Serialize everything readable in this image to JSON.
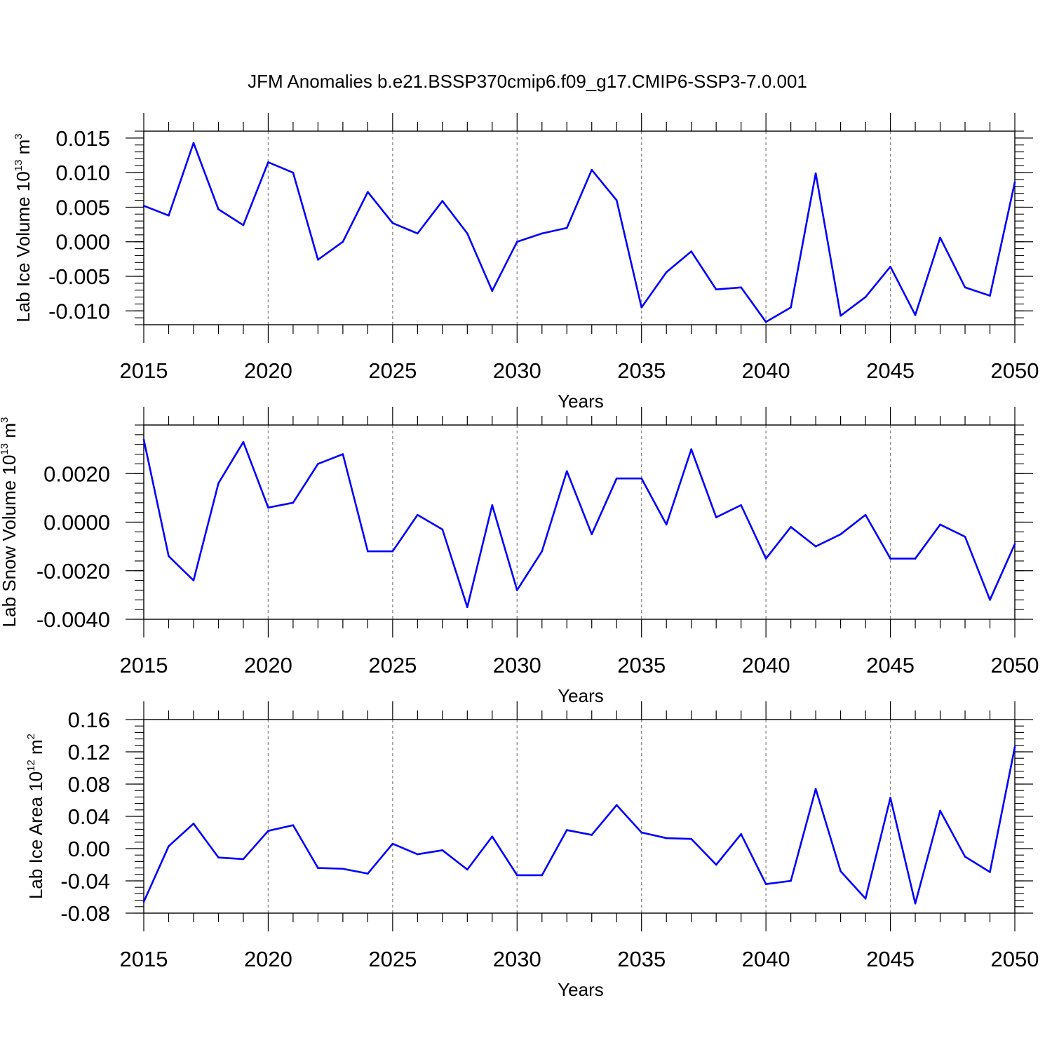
{
  "figure": {
    "title": "JFM Anomalies b.e21.BSSP370cmip6.f09_g17.CMIP6-SSP3-7.0.001"
  },
  "colors": {
    "line": "#0000ff",
    "axis": "#000000",
    "grid": "#888888",
    "background": "#ffffff"
  },
  "chart_data": [
    {
      "type": "line",
      "ylabel": {
        "main": "Lab Ice Volume 10",
        "exponent": "13",
        "unit": " m",
        "unit_exponent": "3"
      },
      "xlabel": "Years",
      "xlim": [
        2015,
        2050
      ],
      "ylim": [
        -0.012,
        0.016
      ],
      "grid": "vertical dashed at major x ticks",
      "x_ticks": [
        2015,
        2020,
        2025,
        2030,
        2035,
        2040,
        2045,
        2050
      ],
      "x_tick_labels": [
        "2015",
        "2020",
        "2025",
        "2030",
        "2035",
        "2040",
        "2045",
        "2050"
      ],
      "y_ticks": [
        -0.01,
        -0.005,
        0.0,
        0.005,
        0.01,
        0.015
      ],
      "y_tick_labels": [
        "-0.010",
        "-0.005",
        "0.000",
        "0.005",
        "0.010",
        "0.015"
      ],
      "y_minor_step": 0.001,
      "x": [
        2015,
        2016,
        2017,
        2018,
        2019,
        2020,
        2021,
        2022,
        2023,
        2024,
        2025,
        2026,
        2027,
        2028,
        2029,
        2030,
        2031,
        2032,
        2033,
        2034,
        2035,
        2036,
        2037,
        2038,
        2039,
        2040,
        2041,
        2042,
        2043,
        2044,
        2045,
        2046,
        2047,
        2048,
        2049,
        2050
      ],
      "series": [
        {
          "name": "Lab Ice Volume",
          "values": [
            0.0052,
            0.0038,
            0.0143,
            0.0047,
            0.0024,
            0.0115,
            0.01,
            -0.0026,
            0.0,
            0.0072,
            0.0027,
            0.0012,
            0.0059,
            0.0012,
            -0.0071,
            0.0,
            0.0012,
            0.002,
            0.0104,
            0.006,
            -0.0095,
            -0.0044,
            -0.0014,
            -0.0069,
            -0.0066,
            -0.0116,
            -0.0095,
            0.0099,
            -0.0107,
            -0.008,
            -0.0036,
            -0.0106,
            0.0006,
            -0.0066,
            -0.0078,
            0.0086
          ]
        }
      ]
    },
    {
      "type": "line",
      "ylabel": {
        "main": "Lab Snow Volume 10",
        "exponent": "13",
        "unit": " m",
        "unit_exponent": "3"
      },
      "xlabel": "Years",
      "xlim": [
        2015,
        2050
      ],
      "ylim": [
        -0.004,
        0.004
      ],
      "grid": "vertical dashed at major x ticks",
      "x_ticks": [
        2015,
        2020,
        2025,
        2030,
        2035,
        2040,
        2045,
        2050
      ],
      "x_tick_labels": [
        "2015",
        "2020",
        "2025",
        "2030",
        "2035",
        "2040",
        "2045",
        "2050"
      ],
      "y_ticks": [
        -0.004,
        -0.002,
        0.0,
        0.002
      ],
      "y_tick_labels": [
        "-0.0040",
        "-0.0020",
        "0.0000",
        "0.0020"
      ],
      "y_minor_step": 0.0004,
      "x": [
        2015,
        2016,
        2017,
        2018,
        2019,
        2020,
        2021,
        2022,
        2023,
        2024,
        2025,
        2026,
        2027,
        2028,
        2029,
        2030,
        2031,
        2032,
        2033,
        2034,
        2035,
        2036,
        2037,
        2038,
        2039,
        2040,
        2041,
        2042,
        2043,
        2044,
        2045,
        2046,
        2047,
        2048,
        2049,
        2050
      ],
      "series": [
        {
          "name": "Lab Snow Volume",
          "values": [
            0.0034,
            -0.0014,
            -0.0024,
            0.0016,
            0.0033,
            0.0006,
            0.0008,
            0.0024,
            0.0028,
            -0.0012,
            -0.0012,
            0.0003,
            -0.0003,
            -0.0035,
            0.0007,
            -0.0028,
            -0.0012,
            0.0021,
            -0.0005,
            0.0018,
            0.0018,
            -0.0001,
            0.003,
            0.0002,
            0.0007,
            -0.0015,
            -0.0002,
            -0.001,
            -0.0005,
            0.0003,
            -0.0015,
            -0.0015,
            -0.0001,
            -0.0006,
            -0.0032,
            -0.0009
          ]
        }
      ]
    },
    {
      "type": "line",
      "ylabel": {
        "main": "Lab Ice Area 10",
        "exponent": "12",
        "unit": " m",
        "unit_exponent": "2"
      },
      "xlabel": "Years",
      "xlim": [
        2015,
        2050
      ],
      "ylim": [
        -0.08,
        0.16
      ],
      "grid": "vertical dashed at major x ticks",
      "x_ticks": [
        2015,
        2020,
        2025,
        2030,
        2035,
        2040,
        2045,
        2050
      ],
      "x_tick_labels": [
        "2015",
        "2020",
        "2025",
        "2030",
        "2035",
        "2040",
        "2045",
        "2050"
      ],
      "y_ticks": [
        -0.08,
        -0.04,
        0.0,
        0.04,
        0.08,
        0.12,
        0.16
      ],
      "y_tick_labels": [
        "-0.08",
        "-0.04",
        "0.00",
        "0.04",
        "0.08",
        "0.12",
        "0.16"
      ],
      "y_minor_step": 0.008,
      "x": [
        2015,
        2016,
        2017,
        2018,
        2019,
        2020,
        2021,
        2022,
        2023,
        2024,
        2025,
        2026,
        2027,
        2028,
        2029,
        2030,
        2031,
        2032,
        2033,
        2034,
        2035,
        2036,
        2037,
        2038,
        2039,
        2040,
        2041,
        2042,
        2043,
        2044,
        2045,
        2046,
        2047,
        2048,
        2049,
        2050
      ],
      "series": [
        {
          "name": "Lab Ice Area",
          "values": [
            -0.066,
            0.003,
            0.031,
            -0.011,
            -0.013,
            0.022,
            0.029,
            -0.024,
            -0.025,
            -0.031,
            0.006,
            -0.007,
            -0.002,
            -0.026,
            0.015,
            -0.033,
            -0.033,
            0.023,
            0.017,
            0.054,
            0.02,
            0.013,
            0.012,
            -0.02,
            0.018,
            -0.044,
            -0.04,
            0.074,
            -0.028,
            -0.062,
            0.063,
            -0.068,
            0.047,
            -0.01,
            -0.029,
            0.126
          ]
        }
      ]
    }
  ]
}
